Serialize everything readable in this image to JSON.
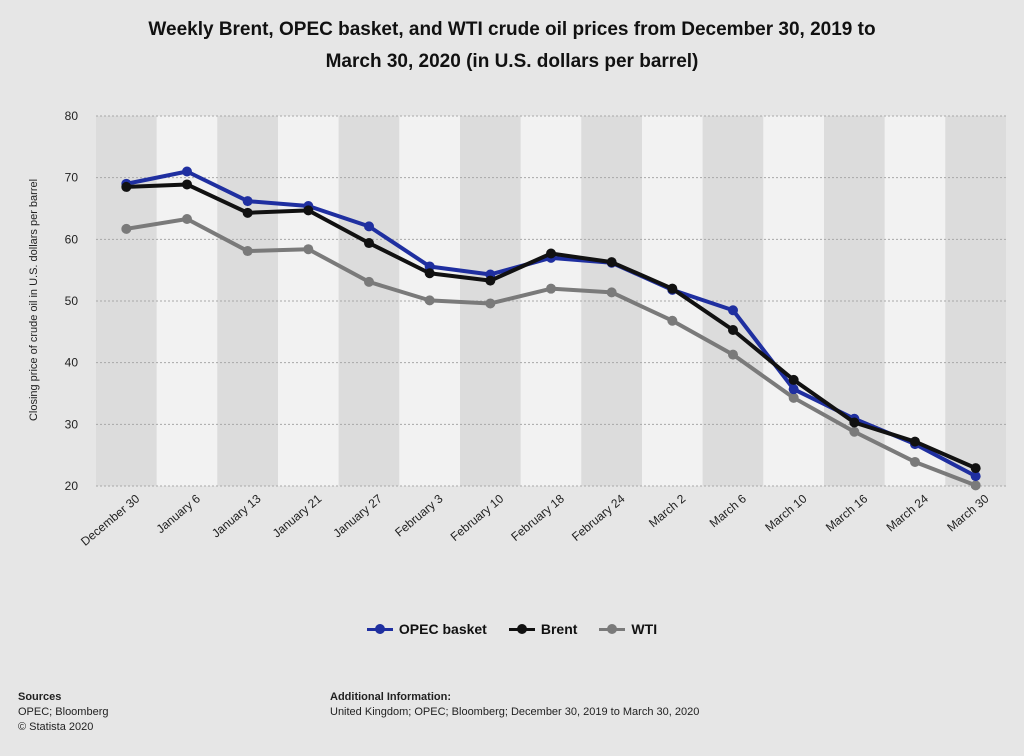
{
  "title_line1": "Weekly Brent, OPEC basket, and WTI crude oil prices from December 30, 2019 to",
  "title_line2": "March 30, 2020 (in U.S. dollars per barrel)",
  "footer": {
    "sources_label": "Sources",
    "sources_line1": "OPEC; Bloomberg",
    "sources_line2": "© Statista 2020",
    "additional_label": "Additional Information:",
    "additional_text": "United Kingdom; OPEC; Bloomberg; December 30, 2019 to March 30, 2020"
  },
  "colors": {
    "background": "#e6e6e6",
    "band_light": "#f2f2f2",
    "band_dark": "#dcdcdc",
    "grid": "#a8a8a8"
  },
  "chart_data": {
    "type": "line",
    "title": "Weekly Brent, OPEC basket, and WTI crude oil prices from December 30, 2019 to March 30, 2020 (in U.S. dollars per barrel)",
    "xlabel": "",
    "ylabel": "Closing price of crude oil in U.S. dollars per barrel",
    "ylim": [
      20,
      80
    ],
    "yticks": [
      20,
      30,
      40,
      50,
      60,
      70,
      80
    ],
    "grid": true,
    "legend_position": "bottom",
    "categories": [
      "December 30",
      "January 6",
      "January 13",
      "January 21",
      "January 27",
      "February 3",
      "February 10",
      "February 18",
      "February 24",
      "March 2",
      "March 6",
      "March 10",
      "March 16",
      "March 24",
      "March 30"
    ],
    "series": [
      {
        "name": "OPEC basket",
        "color": "#1f2fa0",
        "values": [
          69.0,
          71.0,
          66.2,
          65.4,
          62.1,
          55.6,
          54.3,
          57.0,
          56.2,
          51.8,
          48.5,
          35.7,
          30.9,
          26.8,
          21.6
        ]
      },
      {
        "name": "Brent",
        "color": "#111111",
        "values": [
          68.5,
          68.9,
          64.3,
          64.7,
          59.4,
          54.5,
          53.3,
          57.7,
          56.3,
          52.0,
          45.3,
          37.2,
          30.3,
          27.2,
          22.9
        ]
      },
      {
        "name": "WTI",
        "color": "#7a7a7a",
        "values": [
          61.7,
          63.3,
          58.1,
          58.4,
          53.1,
          50.1,
          49.6,
          52.0,
          51.4,
          46.8,
          41.3,
          34.3,
          28.8,
          23.9,
          20.1
        ]
      }
    ]
  }
}
